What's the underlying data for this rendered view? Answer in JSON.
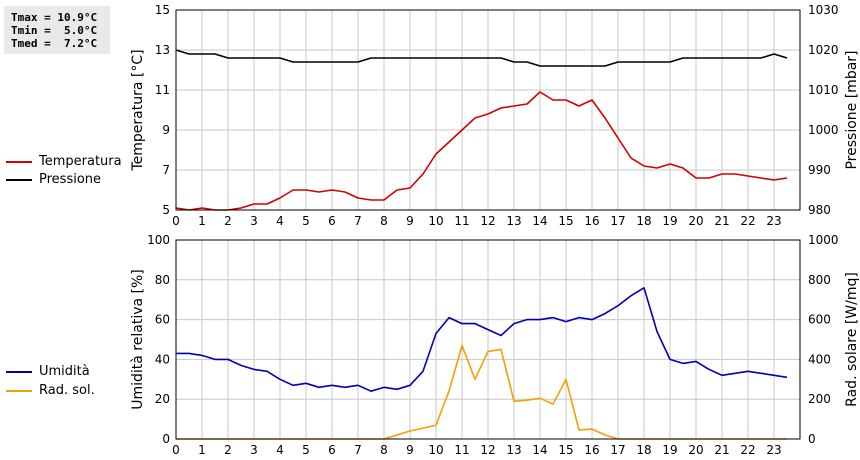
{
  "stats": {
    "tmax": "Tmax = 10.9°C",
    "tmin": "Tmin =  5.0°C",
    "tmed": "Tmed =  7.2°C"
  },
  "colors": {
    "temperatura": "#d40000",
    "pressione": "#000000",
    "umidita": "#0000b4",
    "radsol": "#f5a000",
    "grid": "#c8c8c8"
  },
  "legend_top": [
    {
      "label": "Temperatura",
      "color": "#d40000"
    },
    {
      "label": "Pressione",
      "color": "#000000"
    }
  ],
  "legend_bottom": [
    {
      "label": "Umidità",
      "color": "#0000b4"
    },
    {
      "label": "Rad. sol.",
      "color": "#f5a000"
    }
  ],
  "chart_data": [
    {
      "type": "line",
      "xlabel": "",
      "x_ticks": [
        "0",
        "1",
        "2",
        "3",
        "4",
        "5",
        "6",
        "7",
        "8",
        "9",
        "10",
        "11",
        "12",
        "13",
        "14",
        "15",
        "16",
        "17",
        "18",
        "19",
        "20",
        "21",
        "22",
        "23"
      ],
      "xlim": [
        0,
        24
      ],
      "ylabel": "Temperatura [°C]",
      "ylim": [
        5,
        15
      ],
      "y_ticks": [
        "5",
        "7",
        "9",
        "11",
        "13",
        "15"
      ],
      "y2label": "Pressione [mbar]",
      "y2lim": [
        980,
        1030
      ],
      "y2_ticks": [
        "980",
        "990",
        "1000",
        "1010",
        "1020",
        "1030"
      ],
      "grid": true,
      "series": [
        {
          "name": "Temperatura",
          "axis": "left",
          "color": "#d40000",
          "x": [
            0,
            0.5,
            1,
            1.5,
            2,
            2.5,
            3,
            3.5,
            4,
            4.5,
            5,
            5.5,
            6,
            6.5,
            7,
            7.5,
            8,
            8.5,
            9,
            9.5,
            10,
            10.5,
            11,
            11.5,
            12,
            12.5,
            13,
            13.5,
            14,
            14.5,
            15,
            15.5,
            16,
            16.5,
            17,
            17.5,
            18,
            18.5,
            19,
            19.5,
            20,
            20.5,
            21,
            21.5,
            22,
            22.5,
            23,
            23.5
          ],
          "y": [
            5.1,
            5.0,
            5.1,
            5.0,
            5.0,
            5.1,
            5.3,
            5.3,
            5.6,
            6.0,
            6.0,
            5.9,
            6.0,
            5.9,
            5.6,
            5.5,
            5.5,
            6.0,
            6.1,
            6.8,
            7.8,
            8.4,
            9.0,
            9.6,
            9.8,
            10.1,
            10.2,
            10.3,
            10.9,
            10.5,
            10.5,
            10.2,
            10.5,
            9.6,
            8.6,
            7.6,
            7.2,
            7.1,
            7.3,
            7.1,
            6.6,
            6.6,
            6.8,
            6.8,
            6.7,
            6.6,
            6.5,
            6.6
          ]
        },
        {
          "name": "Pressione",
          "axis": "right",
          "color": "#000000",
          "x": [
            0,
            0.5,
            1,
            1.5,
            2,
            2.5,
            3,
            3.5,
            4,
            4.5,
            5,
            5.5,
            6,
            6.5,
            7,
            7.5,
            8,
            8.5,
            9,
            9.5,
            10,
            10.5,
            11,
            11.5,
            12,
            12.5,
            13,
            13.5,
            14,
            14.5,
            15,
            15.5,
            16,
            16.5,
            17,
            17.5,
            18,
            18.5,
            19,
            19.5,
            20,
            20.5,
            21,
            21.5,
            22,
            22.5,
            23,
            23.5
          ],
          "y": [
            1020,
            1019,
            1019,
            1019,
            1018,
            1018,
            1018,
            1018,
            1018,
            1017,
            1017,
            1017,
            1017,
            1017,
            1017,
            1018,
            1018,
            1018,
            1018,
            1018,
            1018,
            1018,
            1018,
            1018,
            1018,
            1018,
            1017,
            1017,
            1016,
            1016,
            1016,
            1016,
            1016,
            1016,
            1017,
            1017,
            1017,
            1017,
            1017,
            1018,
            1018,
            1018,
            1018,
            1018,
            1018,
            1018,
            1019,
            1018
          ]
        }
      ]
    },
    {
      "type": "line",
      "xlabel": "",
      "x_ticks": [
        "0",
        "1",
        "2",
        "3",
        "4",
        "5",
        "6",
        "7",
        "8",
        "9",
        "10",
        "11",
        "12",
        "13",
        "14",
        "15",
        "16",
        "17",
        "18",
        "19",
        "20",
        "21",
        "22",
        "23"
      ],
      "xlim": [
        0,
        24
      ],
      "ylabel": "Umidità relativa [%]",
      "ylim": [
        0,
        100
      ],
      "y_ticks": [
        "0",
        "20",
        "40",
        "60",
        "80",
        "100"
      ],
      "y2label": "Rad. solare [W/mq]",
      "y2lim": [
        0,
        1000
      ],
      "y2_ticks": [
        "0",
        "200",
        "400",
        "600",
        "800",
        "1000"
      ],
      "grid": true,
      "series": [
        {
          "name": "Umidità",
          "axis": "left",
          "color": "#0000b4",
          "x": [
            0,
            0.5,
            1,
            1.5,
            2,
            2.5,
            3,
            3.5,
            4,
            4.5,
            5,
            5.5,
            6,
            6.5,
            7,
            7.5,
            8,
            8.5,
            9,
            9.5,
            10,
            10.5,
            11,
            11.5,
            12,
            12.5,
            13,
            13.5,
            14,
            14.5,
            15,
            15.5,
            16,
            16.5,
            17,
            17.5,
            18,
            18.5,
            19,
            19.5,
            20,
            20.5,
            21,
            21.5,
            22,
            22.5,
            23,
            23.5
          ],
          "y": [
            43,
            43,
            42,
            40,
            40,
            37,
            35,
            34,
            30,
            27,
            28,
            26,
            27,
            26,
            27,
            24,
            26,
            25,
            27,
            34,
            53,
            61,
            58,
            58,
            55,
            52,
            58,
            60,
            60,
            61,
            59,
            61,
            60,
            63,
            67,
            72,
            76,
            54,
            40,
            38,
            39,
            35,
            32,
            33,
            34,
            33,
            32,
            31
          ]
        },
        {
          "name": "Rad. sol.",
          "axis": "right",
          "color": "#f5a000",
          "x": [
            0,
            0.5,
            1,
            1.5,
            2,
            2.5,
            3,
            3.5,
            4,
            4.5,
            5,
            5.5,
            6,
            6.5,
            7,
            7.5,
            8,
            8.5,
            9,
            9.5,
            10,
            10.5,
            11,
            11.5,
            12,
            12.5,
            13,
            13.5,
            14,
            14.5,
            15,
            15.5,
            16,
            16.5,
            17,
            17.5,
            18,
            18.5,
            19,
            19.5,
            20,
            20.5,
            21,
            21.5,
            22,
            22.5,
            23,
            23.5
          ],
          "y": [
            0,
            0,
            0,
            0,
            0,
            0,
            0,
            0,
            0,
            0,
            0,
            0,
            0,
            0,
            0,
            0,
            0,
            20,
            40,
            55,
            70,
            240,
            470,
            300,
            440,
            450,
            190,
            195,
            205,
            175,
            300,
            45,
            50,
            20,
            0,
            0,
            0,
            0,
            0,
            0,
            0,
            0,
            0,
            0,
            0,
            0,
            0,
            0
          ]
        }
      ]
    }
  ]
}
